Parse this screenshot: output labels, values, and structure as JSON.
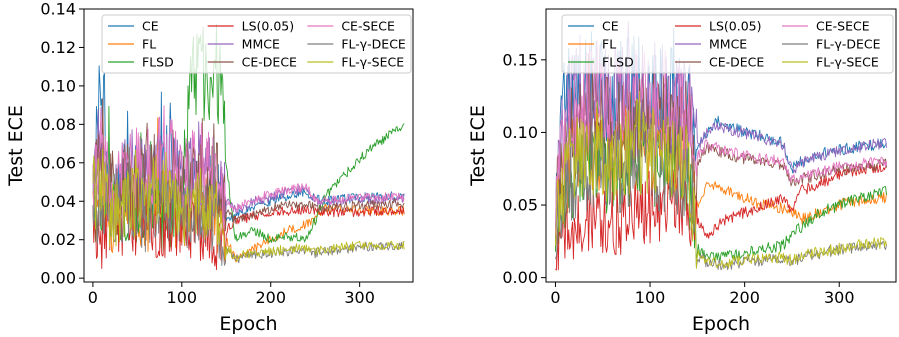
{
  "chart_data": [
    {
      "type": "line",
      "xlabel": "Epoch",
      "ylabel": "Test ECE",
      "xlim": [
        -10,
        360
      ],
      "ylim": [
        -0.002,
        0.14
      ],
      "xticks": [
        0,
        100,
        200,
        300
      ],
      "yticks": [
        0.0,
        0.02,
        0.04,
        0.06,
        0.08,
        0.1,
        0.12,
        0.14
      ],
      "ytick_labels": [
        "0.00",
        "0.02",
        "0.04",
        "0.06",
        "0.08",
        "0.10",
        "0.12",
        "0.14"
      ],
      "legend_position": "top",
      "grid": false,
      "series": [
        {
          "name": "CE",
          "color": "#1f77b4",
          "x": [
            0,
            10,
            20,
            40,
            60,
            80,
            100,
            120,
            140,
            150,
            160,
            180,
            200,
            220,
            240,
            250,
            260,
            280,
            300,
            320,
            350
          ],
          "y": [
            0.05,
            0.11,
            0.03,
            0.06,
            0.04,
            0.06,
            0.05,
            0.04,
            0.05,
            0.03,
            0.032,
            0.037,
            0.04,
            0.043,
            0.045,
            0.042,
            0.04,
            0.041,
            0.042,
            0.042,
            0.043
          ]
        },
        {
          "name": "FL",
          "color": "#ff7f0e",
          "x": [
            0,
            10,
            20,
            40,
            60,
            80,
            100,
            120,
            140,
            150,
            160,
            180,
            200,
            220,
            240,
            250,
            260,
            280,
            300,
            320,
            350
          ],
          "y": [
            0.04,
            0.05,
            0.03,
            0.04,
            0.03,
            0.04,
            0.03,
            0.04,
            0.03,
            0.02,
            0.01,
            0.015,
            0.02,
            0.025,
            0.028,
            0.03,
            0.036,
            0.036,
            0.036,
            0.035,
            0.035
          ]
        },
        {
          "name": "FLSD",
          "color": "#2ca02c",
          "x": [
            0,
            10,
            20,
            40,
            60,
            80,
            100,
            110,
            120,
            130,
            140,
            150,
            160,
            180,
            200,
            220,
            240,
            250,
            260,
            280,
            300,
            320,
            350
          ],
          "y": [
            0.04,
            0.03,
            0.05,
            0.03,
            0.04,
            0.03,
            0.04,
            0.1,
            0.11,
            0.1,
            0.11,
            0.06,
            0.02,
            0.025,
            0.02,
            0.022,
            0.02,
            0.03,
            0.042,
            0.052,
            0.062,
            0.07,
            0.08
          ]
        },
        {
          "name": "LS(0.05)",
          "color": "#d62728",
          "x": [
            0,
            10,
            20,
            40,
            60,
            80,
            100,
            120,
            140,
            150,
            160,
            180,
            200,
            220,
            240,
            250,
            260,
            280,
            300,
            320,
            350
          ],
          "y": [
            0.03,
            0.02,
            0.03,
            0.025,
            0.03,
            0.025,
            0.03,
            0.025,
            0.02,
            0.025,
            0.03,
            0.032,
            0.034,
            0.035,
            0.036,
            0.035,
            0.034,
            0.034,
            0.034,
            0.035,
            0.035
          ]
        },
        {
          "name": "MMCE",
          "color": "#9467bd",
          "x": [
            0,
            10,
            20,
            40,
            60,
            80,
            100,
            120,
            140,
            150,
            160,
            180,
            200,
            220,
            240,
            250,
            260,
            280,
            300,
            320,
            350
          ],
          "y": [
            0.05,
            0.06,
            0.04,
            0.06,
            0.05,
            0.06,
            0.05,
            0.06,
            0.05,
            0.04,
            0.035,
            0.04,
            0.042,
            0.045,
            0.046,
            0.04,
            0.039,
            0.04,
            0.041,
            0.041,
            0.042
          ]
        },
        {
          "name": "CE-DECE",
          "color": "#8c564b",
          "x": [
            0,
            10,
            20,
            40,
            60,
            80,
            100,
            120,
            140,
            150,
            160,
            180,
            200,
            220,
            240,
            250,
            260,
            280,
            300,
            320,
            350
          ],
          "y": [
            0.05,
            0.06,
            0.05,
            0.05,
            0.06,
            0.05,
            0.05,
            0.05,
            0.05,
            0.035,
            0.03,
            0.033,
            0.036,
            0.038,
            0.038,
            0.037,
            0.036,
            0.037,
            0.038,
            0.038,
            0.039
          ]
        },
        {
          "name": "CE-SECE",
          "color": "#e377c2",
          "x": [
            0,
            10,
            20,
            40,
            60,
            80,
            100,
            120,
            140,
            150,
            160,
            180,
            200,
            220,
            240,
            250,
            260,
            280,
            300,
            320,
            350
          ],
          "y": [
            0.05,
            0.07,
            0.04,
            0.06,
            0.05,
            0.07,
            0.05,
            0.06,
            0.05,
            0.04,
            0.036,
            0.041,
            0.044,
            0.046,
            0.047,
            0.041,
            0.04,
            0.041,
            0.042,
            0.042,
            0.042
          ]
        },
        {
          "name": "FL-γ-DECE",
          "color": "#7f7f7f",
          "x": [
            0,
            10,
            20,
            40,
            60,
            80,
            100,
            120,
            140,
            150,
            160,
            180,
            200,
            220,
            240,
            250,
            260,
            280,
            300,
            320,
            350
          ],
          "y": [
            0.03,
            0.04,
            0.03,
            0.04,
            0.03,
            0.04,
            0.03,
            0.035,
            0.03,
            0.015,
            0.01,
            0.012,
            0.013,
            0.014,
            0.015,
            0.013,
            0.014,
            0.015,
            0.016,
            0.017,
            0.017
          ]
        },
        {
          "name": "FL-γ-SECE",
          "color": "#bcbd22",
          "x": [
            0,
            10,
            20,
            40,
            60,
            80,
            100,
            120,
            140,
            150,
            160,
            180,
            200,
            220,
            240,
            250,
            260,
            280,
            300,
            320,
            350
          ],
          "y": [
            0.04,
            0.05,
            0.03,
            0.04,
            0.04,
            0.05,
            0.03,
            0.04,
            0.035,
            0.015,
            0.011,
            0.013,
            0.014,
            0.015,
            0.016,
            0.014,
            0.015,
            0.016,
            0.017,
            0.017,
            0.017
          ]
        }
      ]
    },
    {
      "type": "line",
      "xlabel": "Epoch",
      "ylabel": "Test ECE",
      "xlim": [
        -10,
        360
      ],
      "ylim": [
        -0.003,
        0.185
      ],
      "xticks": [
        0,
        100,
        200,
        300
      ],
      "yticks": [
        0.0,
        0.05,
        0.1,
        0.15
      ],
      "ytick_labels": [
        "0.00",
        "0.05",
        "0.10",
        "0.15"
      ],
      "legend_position": "top",
      "grid": false,
      "series": [
        {
          "name": "CE",
          "color": "#1f77b4",
          "x": [
            0,
            10,
            20,
            40,
            60,
            80,
            100,
            120,
            140,
            150,
            160,
            170,
            180,
            200,
            220,
            240,
            250,
            260,
            280,
            300,
            320,
            350
          ],
          "y": [
            0.05,
            0.12,
            0.12,
            0.13,
            0.12,
            0.13,
            0.13,
            0.12,
            0.12,
            0.09,
            0.1,
            0.108,
            0.105,
            0.1,
            0.097,
            0.093,
            0.075,
            0.08,
            0.085,
            0.088,
            0.09,
            0.093
          ]
        },
        {
          "name": "FL",
          "color": "#ff7f0e",
          "x": [
            0,
            10,
            20,
            40,
            60,
            80,
            100,
            120,
            140,
            150,
            160,
            180,
            200,
            220,
            240,
            250,
            260,
            280,
            300,
            320,
            350
          ],
          "y": [
            0.04,
            0.07,
            0.08,
            0.09,
            0.08,
            0.09,
            0.09,
            0.08,
            0.08,
            0.05,
            0.065,
            0.06,
            0.055,
            0.05,
            0.048,
            0.045,
            0.04,
            0.045,
            0.05,
            0.053,
            0.055
          ]
        },
        {
          "name": "FLSD",
          "color": "#2ca02c",
          "x": [
            0,
            10,
            20,
            40,
            60,
            80,
            100,
            120,
            140,
            150,
            160,
            180,
            200,
            220,
            240,
            250,
            260,
            280,
            300,
            320,
            350
          ],
          "y": [
            0.04,
            0.06,
            0.07,
            0.08,
            0.07,
            0.08,
            0.08,
            0.08,
            0.07,
            0.02,
            0.013,
            0.015,
            0.017,
            0.02,
            0.022,
            0.03,
            0.035,
            0.045,
            0.05,
            0.055,
            0.06
          ]
        },
        {
          "name": "LS(0.05)",
          "color": "#d62728",
          "x": [
            0,
            10,
            20,
            40,
            60,
            80,
            100,
            120,
            140,
            150,
            160,
            180,
            200,
            220,
            240,
            250,
            260,
            280,
            300,
            320,
            350
          ],
          "y": [
            0.015,
            0.03,
            0.035,
            0.04,
            0.035,
            0.045,
            0.05,
            0.05,
            0.045,
            0.04,
            0.03,
            0.04,
            0.045,
            0.05,
            0.055,
            0.045,
            0.06,
            0.065,
            0.07,
            0.074,
            0.077
          ]
        },
        {
          "name": "MMCE",
          "color": "#9467bd",
          "x": [
            0,
            10,
            20,
            40,
            60,
            80,
            100,
            120,
            140,
            150,
            160,
            170,
            180,
            200,
            220,
            240,
            250,
            260,
            280,
            300,
            320,
            350
          ],
          "y": [
            0.05,
            0.11,
            0.12,
            0.13,
            0.12,
            0.12,
            0.13,
            0.12,
            0.11,
            0.09,
            0.1,
            0.105,
            0.103,
            0.099,
            0.096,
            0.092,
            0.074,
            0.079,
            0.084,
            0.087,
            0.09,
            0.093
          ]
        },
        {
          "name": "CE-DECE",
          "color": "#8c564b",
          "x": [
            0,
            10,
            20,
            40,
            60,
            80,
            100,
            120,
            140,
            150,
            160,
            180,
            200,
            220,
            240,
            250,
            260,
            280,
            300,
            320,
            350
          ],
          "y": [
            0.05,
            0.09,
            0.1,
            0.11,
            0.1,
            0.11,
            0.11,
            0.1,
            0.1,
            0.08,
            0.09,
            0.085,
            0.082,
            0.08,
            0.078,
            0.065,
            0.068,
            0.071,
            0.074,
            0.076,
            0.078
          ]
        },
        {
          "name": "CE-SECE",
          "color": "#e377c2",
          "x": [
            0,
            10,
            20,
            40,
            60,
            80,
            100,
            120,
            140,
            150,
            160,
            180,
            200,
            220,
            240,
            250,
            260,
            280,
            300,
            320,
            350
          ],
          "y": [
            0.05,
            0.1,
            0.11,
            0.12,
            0.11,
            0.12,
            0.12,
            0.11,
            0.11,
            0.085,
            0.092,
            0.087,
            0.084,
            0.082,
            0.08,
            0.067,
            0.07,
            0.073,
            0.076,
            0.078,
            0.08
          ]
        },
        {
          "name": "FL-γ-DECE",
          "color": "#7f7f7f",
          "x": [
            0,
            10,
            20,
            40,
            60,
            80,
            100,
            120,
            140,
            150,
            160,
            180,
            200,
            220,
            240,
            250,
            260,
            280,
            300,
            320,
            350
          ],
          "y": [
            0.03,
            0.06,
            0.07,
            0.08,
            0.07,
            0.08,
            0.08,
            0.07,
            0.07,
            0.015,
            0.01,
            0.009,
            0.011,
            0.012,
            0.013,
            0.011,
            0.014,
            0.017,
            0.019,
            0.021,
            0.022
          ]
        },
        {
          "name": "FL-γ-SECE",
          "color": "#bcbd22",
          "x": [
            0,
            10,
            20,
            40,
            60,
            80,
            100,
            120,
            140,
            150,
            160,
            180,
            200,
            220,
            240,
            250,
            260,
            280,
            300,
            320,
            350
          ],
          "y": [
            0.04,
            0.07,
            0.08,
            0.09,
            0.08,
            0.09,
            0.09,
            0.08,
            0.08,
            0.016,
            0.011,
            0.01,
            0.012,
            0.013,
            0.014,
            0.012,
            0.015,
            0.018,
            0.02,
            0.023,
            0.024
          ]
        }
      ]
    }
  ]
}
